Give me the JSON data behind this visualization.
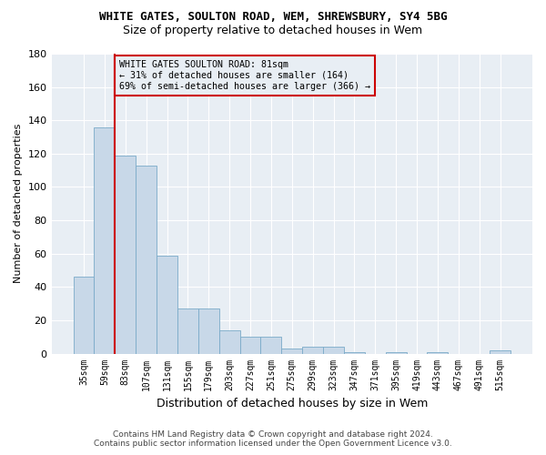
{
  "title1": "WHITE GATES, SOULTON ROAD, WEM, SHREWSBURY, SY4 5BG",
  "title2": "Size of property relative to detached houses in Wem",
  "xlabel": "Distribution of detached houses by size in Wem",
  "ylabel": "Number of detached properties",
  "categories": [
    "35sqm",
    "59sqm",
    "83sqm",
    "107sqm",
    "131sqm",
    "155sqm",
    "179sqm",
    "203sqm",
    "227sqm",
    "251sqm",
    "275sqm",
    "299sqm",
    "323sqm",
    "347sqm",
    "371sqm",
    "395sqm",
    "419sqm",
    "443sqm",
    "467sqm",
    "491sqm",
    "515sqm"
  ],
  "values": [
    46,
    136,
    119,
    113,
    59,
    27,
    27,
    14,
    10,
    10,
    3,
    4,
    4,
    1,
    0,
    1,
    0,
    1,
    0,
    0,
    2
  ],
  "bar_color": "#c8d8e8",
  "bar_edge_color": "#7aaac8",
  "highlight_line_color": "#cc0000",
  "highlight_line_index": 1.5,
  "annotation_box_text": "WHITE GATES SOULTON ROAD: 81sqm\n← 31% of detached houses are smaller (164)\n69% of semi-detached houses are larger (366) →",
  "annotation_box_edge_color": "#cc0000",
  "ylim": [
    0,
    180
  ],
  "yticks": [
    0,
    20,
    40,
    60,
    80,
    100,
    120,
    140,
    160,
    180
  ],
  "footer_line1": "Contains HM Land Registry data © Crown copyright and database right 2024.",
  "footer_line2": "Contains public sector information licensed under the Open Government Licence v3.0.",
  "figure_bg_color": "#ffffff",
  "axes_bg_color": "#e8eef4",
  "grid_color": "#ffffff",
  "title1_fontsize": 9,
  "title2_fontsize": 9,
  "xlabel_fontsize": 9,
  "ylabel_fontsize": 8,
  "tick_fontsize": 7,
  "footer_fontsize": 6.5
}
